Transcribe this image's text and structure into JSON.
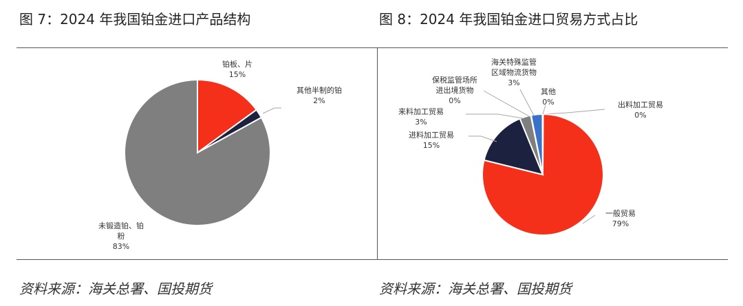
{
  "figure1": {
    "title": "图 7：2024 年我国铂金进口产品结构",
    "source": "资料来源：海关总署、国投期货"
  },
  "figure2": {
    "title": "图 8：2024 年我国铂金进口贸易方式占比",
    "source": "资料来源：海关总署、国投期货"
  },
  "chart_data": [
    {
      "type": "pie",
      "title": "",
      "slices": [
        {
          "label": [
            "铂板、片"
          ],
          "value": 15,
          "value_label": "15%",
          "color": "#F5301A"
        },
        {
          "label": [
            "其他半制的铂"
          ],
          "value": 2,
          "value_label": "2%",
          "color": "#1C2140"
        },
        {
          "label": [
            "未锻造铂、铂",
            "粉"
          ],
          "value": 83,
          "value_label": "83%",
          "color": "#7F7F7F"
        }
      ]
    },
    {
      "type": "pie",
      "title": "",
      "slices": [
        {
          "label": [
            "出料加工贸易"
          ],
          "value": 0.1,
          "value_label": "0%",
          "color": "#FFC000"
        },
        {
          "label": [
            "一般贸易"
          ],
          "value": 79,
          "value_label": "79%",
          "color": "#F5301A"
        },
        {
          "label": [
            "进料加工贸易"
          ],
          "value": 15,
          "value_label": "15%",
          "color": "#1C2140"
        },
        {
          "label": [
            "来料加工贸易"
          ],
          "value": 3,
          "value_label": "3%",
          "color": "#7F7F7F"
        },
        {
          "label": [
            "保税监管场所",
            "进出境货物"
          ],
          "value": 0.1,
          "value_label": "0%",
          "color": "#A5A5A5"
        },
        {
          "label": [
            "海关特殊监管",
            "区域物流货物"
          ],
          "value": 3,
          "value_label": "3%",
          "color": "#3A72C8"
        },
        {
          "label": [
            "其他"
          ],
          "value": 0.1,
          "value_label": "0%",
          "color": "#5B9BD5"
        }
      ]
    }
  ]
}
